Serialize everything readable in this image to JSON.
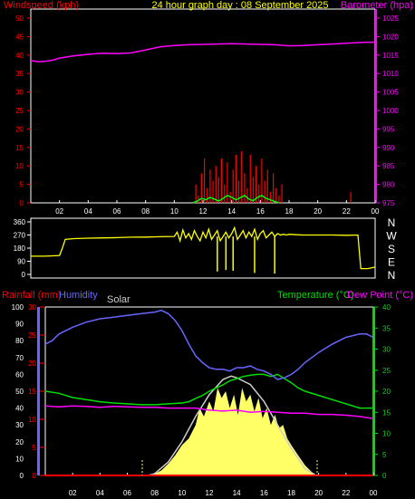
{
  "colors": {
    "wind": "#ff0000",
    "gust": "#00ff00",
    "baro": "#ff00ff",
    "dir": "#ffff00",
    "rain": "#ff0000",
    "humidity": "#6666ff",
    "solar": "#cccccc",
    "solar_fill": "#ffff66",
    "temp": "#00dd00",
    "dew": "#ff00ff",
    "title": "#ffff00",
    "frame": "#ffffff",
    "axis_text": "#ffffff"
  },
  "header": {
    "left_label": "Windspeed (kph)",
    "title": "24 hour graph day : 08 September 2025",
    "right_label": "Barometer (hpa)"
  },
  "x_ticks": [
    "02",
    "04",
    "06",
    "08",
    "10",
    "12",
    "14",
    "16",
    "18",
    "20",
    "22",
    "00"
  ],
  "chart_data": [
    {
      "type": "line",
      "name": "wind-barometer",
      "x_range": [
        0,
        24
      ],
      "ylim_left": [
        0,
        50
      ],
      "left_ticks": [
        0,
        5,
        10,
        15,
        20,
        25,
        30,
        35,
        40,
        45,
        50
      ],
      "ylim_right": [
        975,
        1025
      ],
      "right_ticks": [
        975,
        980,
        985,
        990,
        995,
        1000,
        1005,
        1010,
        1015,
        1020,
        1025
      ],
      "barometer": {
        "x": [
          0,
          0.5,
          1,
          1.5,
          2,
          3,
          4,
          5,
          6,
          7,
          8,
          9,
          10,
          11,
          12,
          13,
          14,
          15,
          16,
          17,
          18,
          19,
          20,
          21,
          22,
          23,
          24
        ],
        "y": [
          1013.5,
          1013.2,
          1013.3,
          1013.6,
          1014.2,
          1014.8,
          1015.2,
          1015.5,
          1015.4,
          1015.6,
          1016.4,
          1017.2,
          1017.6,
          1017.8,
          1017.9,
          1018.0,
          1018.1,
          1018.0,
          1017.9,
          1017.8,
          1017.5,
          1017.6,
          1017.8,
          1018.0,
          1018.2,
          1018.4,
          1018.5
        ]
      },
      "wind": {
        "x": [
          11.5,
          11.7,
          11.9,
          12.1,
          12.3,
          12.5,
          12.7,
          12.9,
          13.1,
          13.3,
          13.5,
          13.7,
          13.9,
          14.1,
          14.3,
          14.5,
          14.7,
          14.9,
          15.1,
          15.3,
          15.5,
          15.7,
          15.9,
          16.1,
          16.3,
          16.5,
          16.7,
          16.9,
          17.1,
          17.3,
          17.5,
          22.3
        ],
        "y": [
          5,
          2,
          8,
          12,
          4,
          9,
          6,
          10,
          7,
          12,
          5,
          11,
          3,
          9,
          13,
          6,
          14,
          8,
          4,
          13,
          7,
          10,
          5,
          12,
          6,
          9,
          3,
          8,
          4,
          2,
          5,
          3
        ]
      },
      "gust": {
        "x": [
          11.3,
          11.6,
          11.9,
          12.2,
          12.5,
          12.8,
          13.1,
          13.4,
          13.7,
          14.0,
          14.3,
          14.6,
          14.9,
          15.2,
          15.5,
          15.8,
          16.1,
          16.4,
          16.7,
          17.0,
          17.3
        ],
        "y": [
          0,
          0.5,
          1.2,
          0.8,
          1.5,
          1.0,
          0.5,
          1.2,
          2.0,
          1.5,
          0.8,
          1.4,
          2.0,
          1.0,
          0.6,
          1.5,
          2.0,
          1.2,
          0.8,
          0.4,
          0
        ]
      }
    },
    {
      "type": "line",
      "name": "wind-direction",
      "x_range": [
        0,
        24
      ],
      "ylim": [
        0,
        360
      ],
      "left_ticks": [
        0,
        90,
        180,
        270,
        360
      ],
      "right_labels": [
        "N",
        "W",
        "S",
        "E",
        "N"
      ],
      "direction": {
        "x": [
          0,
          1,
          2,
          2.2,
          2.4,
          3,
          4,
          5,
          6,
          7,
          8,
          9,
          10,
          10.2,
          10.4,
          10.6,
          10.8,
          11,
          11.2,
          11.4,
          11.6,
          11.8,
          12,
          12.2,
          12.4,
          12.6,
          12.8,
          13,
          13.2,
          13.4,
          13.6,
          13.8,
          14,
          14.2,
          14.4,
          14.6,
          14.8,
          15,
          15.2,
          15.4,
          15.6,
          15.8,
          16,
          16.2,
          16.4,
          16.6,
          16.8,
          17,
          17.2,
          17.4,
          17.6,
          17.8,
          18,
          18.5,
          19,
          20,
          21,
          22,
          22.8,
          23,
          23.5,
          24
        ],
        "y": [
          125,
          125,
          130,
          180,
          240,
          245,
          248,
          250,
          252,
          255,
          256,
          258,
          260,
          290,
          230,
          305,
          250,
          280,
          240,
          300,
          260,
          230,
          290,
          250,
          310,
          240,
          270,
          300,
          230,
          260,
          290,
          250,
          280,
          320,
          240,
          270,
          300,
          250,
          290,
          260,
          310,
          240,
          280,
          300,
          250,
          270,
          290,
          260,
          280,
          270,
          275,
          270,
          275,
          272,
          270,
          270,
          270,
          268,
          270,
          40,
          40,
          50
        ]
      },
      "dips": [
        {
          "x": 13.0,
          "y": 20
        },
        {
          "x": 13.6,
          "y": 30
        },
        {
          "x": 14.1,
          "y": 25
        },
        {
          "x": 15.6,
          "y": 10
        },
        {
          "x": 17.0,
          "y": 5
        }
      ]
    },
    {
      "type": "line",
      "name": "weather-composite",
      "x_range": [
        0,
        24
      ],
      "labels": {
        "rain": "Rainfall (mm)",
        "humidity": "Humidity",
        "solar": "Solar",
        "temp": "Temperature (°C)",
        "dew": "Dew Point (°C)"
      },
      "humidity_ticks": [
        0,
        10,
        20,
        30,
        40,
        50,
        60,
        70,
        80,
        90,
        100
      ],
      "rain_ticks": [
        0,
        5,
        10,
        15,
        20,
        25,
        30
      ],
      "temp_ticks": [
        0,
        5,
        10,
        15,
        20,
        25,
        30,
        35,
        40
      ],
      "ylim_humidity": [
        0,
        100
      ],
      "ylim_rain": [
        0,
        30
      ],
      "ylim_temp": [
        0,
        40
      ],
      "humidity": {
        "x": [
          0,
          0.5,
          1,
          2,
          3,
          4,
          5,
          6,
          7,
          8,
          8.5,
          9,
          9.5,
          10,
          10.5,
          11,
          11.5,
          12,
          12.5,
          13,
          13.5,
          14,
          14.5,
          15,
          15.5,
          16,
          16.5,
          17,
          17.5,
          18,
          18.5,
          19,
          20,
          21,
          22,
          23,
          23.5,
          24
        ],
        "y": [
          78,
          80,
          84,
          88,
          91,
          93,
          94,
          95,
          96,
          97,
          98,
          96,
          92,
          86,
          78,
          71,
          67,
          64,
          63,
          63,
          62,
          64,
          64,
          65,
          63,
          62,
          60,
          57,
          58,
          60,
          63,
          67,
          73,
          78,
          82,
          84,
          84,
          82
        ]
      },
      "temperature": {
        "x": [
          0,
          1,
          2,
          3,
          4,
          5,
          6,
          7,
          8,
          9,
          10,
          10.5,
          11,
          11.5,
          12,
          12.5,
          13,
          13.5,
          14,
          14.5,
          15,
          15.5,
          16,
          16.5,
          17,
          17.5,
          18,
          18.5,
          19,
          20,
          21,
          22,
          23,
          24
        ],
        "y": [
          20,
          19.5,
          18.5,
          18,
          17.5,
          17.2,
          17,
          16.8,
          16.8,
          17,
          17.2,
          17.5,
          18.3,
          19,
          20,
          20.8,
          21.5,
          22.5,
          23,
          23.5,
          23.8,
          24,
          24,
          23.5,
          24,
          23,
          22,
          20.8,
          20,
          19,
          18,
          17,
          16,
          16
        ]
      },
      "dewpoint": {
        "x": [
          0,
          1,
          2,
          3,
          4,
          5,
          6,
          7,
          8,
          9,
          10,
          11,
          12,
          13,
          14,
          15,
          16,
          17,
          18,
          19,
          20,
          21,
          22,
          23,
          24
        ],
        "y": [
          16.5,
          16.3,
          16.5,
          16.4,
          16.2,
          16.4,
          16.3,
          16.2,
          16.2,
          16,
          16,
          16,
          15.5,
          15.3,
          15.5,
          15,
          15.2,
          15,
          14.8,
          14.8,
          14.5,
          14.5,
          14.3,
          14.0,
          13.5
        ]
      },
      "solar_max": {
        "x": [
          7.5,
          8,
          9,
          10,
          11,
          12,
          13,
          13.6,
          14,
          15,
          16,
          17,
          18,
          19,
          19.8
        ],
        "y": [
          0,
          1,
          8,
          20,
          35,
          48,
          57,
          59,
          58,
          54,
          44,
          30,
          16,
          4,
          0
        ]
      },
      "solar": {
        "x": [
          7.6,
          8,
          8.5,
          9,
          9.5,
          10,
          10.5,
          11,
          11.3,
          11.6,
          12,
          12.3,
          12.6,
          12.9,
          13.2,
          13.5,
          13.8,
          14.1,
          14.4,
          14.7,
          15,
          15.3,
          15.6,
          15.9,
          16.2,
          16.5,
          16.8,
          17.1,
          17.4,
          17.7,
          18,
          18.5,
          19,
          19.5,
          19.9
        ],
        "y": [
          0,
          1,
          3,
          7,
          12,
          18,
          22,
          30,
          40,
          35,
          44,
          38,
          52,
          46,
          50,
          40,
          48,
          36,
          52,
          44,
          48,
          38,
          46,
          34,
          40,
          30,
          36,
          28,
          30,
          22,
          18,
          12,
          6,
          2,
          0
        ]
      },
      "rain": {
        "x": [
          0,
          24
        ],
        "y": [
          0,
          0
        ]
      }
    }
  ]
}
